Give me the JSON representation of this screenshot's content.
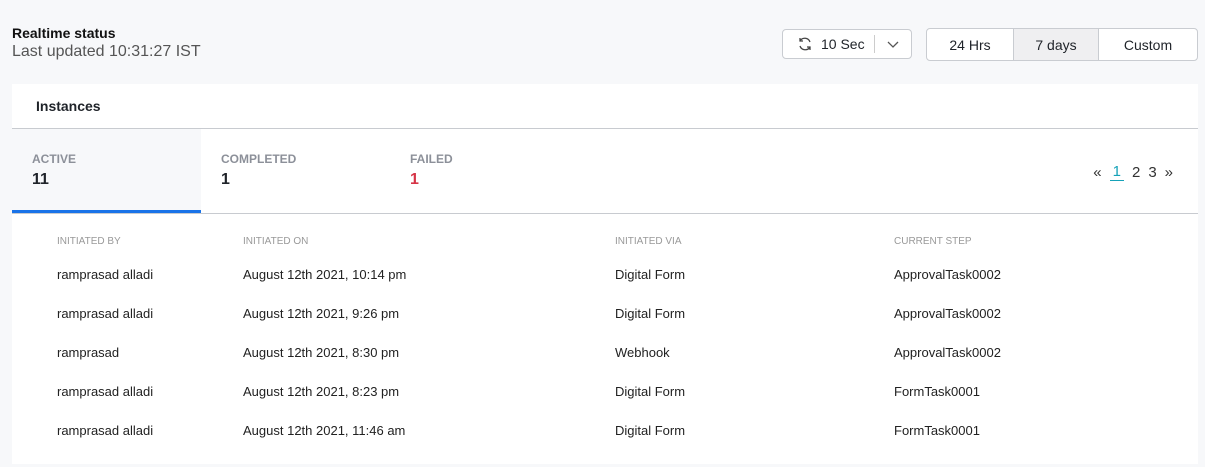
{
  "header": {
    "title": "Realtime status",
    "last_updated": "Last updated 10:31:27 IST"
  },
  "refresh": {
    "interval": "10 Sec",
    "icon": "refresh-icon"
  },
  "range": {
    "options": [
      "24 Hrs",
      "7 days",
      "Custom"
    ],
    "selected": "7 days"
  },
  "card": {
    "title": "Instances",
    "tabs": [
      {
        "label": "ACTIVE",
        "count": "11"
      },
      {
        "label": "COMPLETED",
        "count": "1"
      },
      {
        "label": "FAILED",
        "count": "1",
        "color": "#d63447"
      }
    ],
    "pager": {
      "first": "«",
      "pages": [
        "1",
        "2",
        "3"
      ],
      "current": "1",
      "last": "»"
    },
    "columns": [
      "INITIATED BY",
      "INITIATED ON",
      "INITIATED VIA",
      "CURRENT STEP"
    ],
    "rows": [
      [
        "ramprasad alladi",
        "August 12th 2021, 10:14 pm",
        "Digital Form",
        "ApprovalTask0002"
      ],
      [
        "ramprasad alladi",
        "August 12th 2021, 9:26 pm",
        "Digital Form",
        "ApprovalTask0002"
      ],
      [
        "ramprasad",
        "August 12th 2021, 8:30 pm",
        "Webhook",
        "ApprovalTask0002"
      ],
      [
        "ramprasad alladi",
        "August 12th 2021, 8:23 pm",
        "Digital Form",
        "FormTask0001"
      ],
      [
        "ramprasad alladi",
        "August 12th 2021, 11:46 am",
        "Digital Form",
        "FormTask0001"
      ]
    ]
  }
}
